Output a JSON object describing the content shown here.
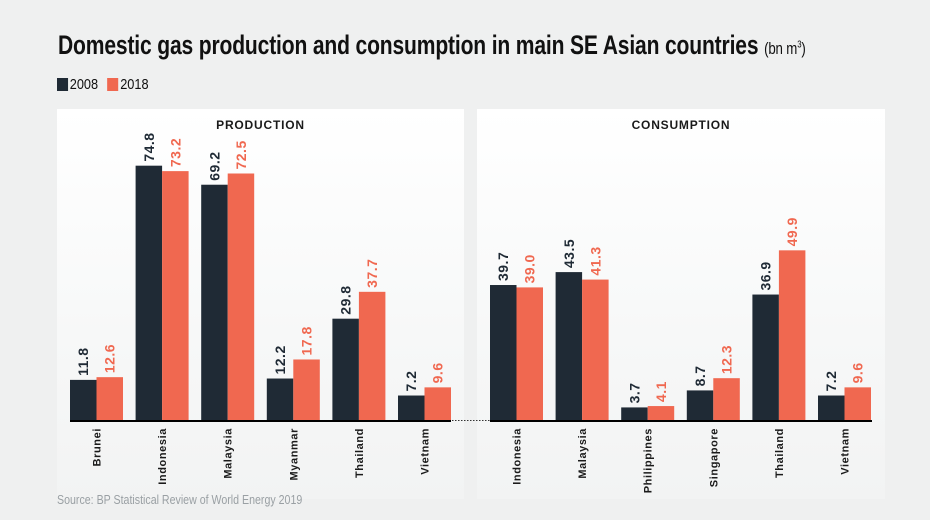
{
  "title": "Domestic gas production and consumption in main SE Asian countries",
  "title_unit": "(bn m",
  "title_unit_sup": "3",
  "title_unit_close": ")",
  "legend": [
    {
      "label": "2008",
      "color": "#1f2a35"
    },
    {
      "label": "2018",
      "color": "#f06850"
    }
  ],
  "source": "Source: BP Statistical Review of World Energy 2019",
  "chart_data": [
    {
      "type": "bar",
      "title": "PRODUCTION",
      "categories": [
        "Brunei",
        "Indonesia",
        "Malaysia",
        "Myanmar",
        "Thailand",
        "Vietnam"
      ],
      "series": [
        {
          "name": "2008",
          "color": "#1f2a35",
          "values": [
            11.8,
            74.8,
            69.2,
            12.2,
            29.8,
            7.2
          ],
          "labels": [
            "11.8",
            "74.8",
            "69.2",
            "12.2",
            "29.8",
            "7.2"
          ]
        },
        {
          "name": "2018",
          "color": "#f06850",
          "values": [
            12.6,
            73.2,
            72.5,
            17.8,
            37.7,
            9.6
          ],
          "labels": [
            "12.6",
            "73.2",
            "72.5",
            "17.8",
            "37.7",
            "9.6"
          ]
        }
      ],
      "xlabel": "",
      "ylabel": "bn m3",
      "ylim": [
        0,
        80
      ],
      "grid": false
    },
    {
      "type": "bar",
      "title": "CONSUMPTION",
      "categories": [
        "Indonesia",
        "Malaysia",
        "Philippines",
        "Singapore",
        "Thailand",
        "Vietnam"
      ],
      "series": [
        {
          "name": "2008",
          "color": "#1f2a35",
          "values": [
            39.7,
            43.5,
            3.7,
            8.7,
            36.9,
            7.2
          ],
          "labels": [
            "39.7",
            "43.5",
            "3.7",
            "8.7",
            "36.9",
            "7.2"
          ]
        },
        {
          "name": "2018",
          "color": "#f06850",
          "values": [
            39.0,
            41.3,
            4.1,
            12.3,
            49.9,
            9.6
          ],
          "labels": [
            "39.0",
            "41.3",
            "4.1",
            "12.3",
            "49.9",
            "9.6"
          ]
        }
      ],
      "xlabel": "",
      "ylabel": "bn m3",
      "ylim": [
        0,
        80
      ],
      "grid": false
    }
  ]
}
